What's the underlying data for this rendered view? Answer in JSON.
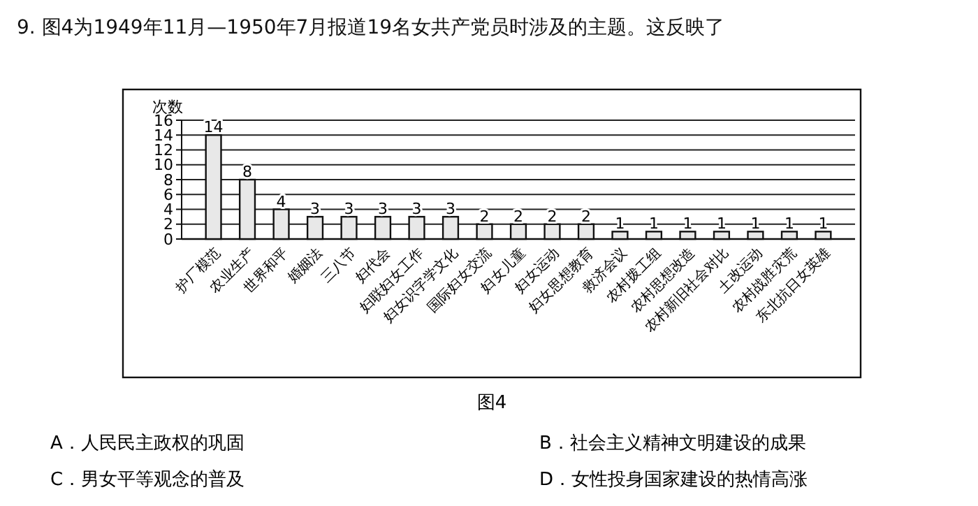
{
  "chart_data": {
    "type": "bar",
    "title": "9. 图4为1949年11月—1950年7月报道19名女共产党员时涉及的主题。这反映了",
    "ylabel": "次数",
    "categories": [
      "护厂模范",
      "农业生产",
      "世界和平",
      "婚姻法",
      "三八节",
      "妇代会",
      "妇联妇女工作",
      "妇女识字学文化",
      "国际妇女交流",
      "妇女儿童",
      "妇女运动",
      "妇女思想教育",
      "救济会议",
      "农村拨工组",
      "农村思想改造",
      "农村新旧社会对比",
      "土改运动",
      "农村战胜灾荒",
      "东北抗日女英雄"
    ],
    "values": [
      14,
      8,
      4,
      3,
      3,
      3,
      3,
      3,
      2,
      2,
      2,
      2,
      1,
      1,
      1,
      1,
      1,
      1,
      1
    ],
    "color": "#e8e8e8",
    "ylim": [
      0,
      16
    ],
    "yticks": [
      0,
      2,
      4,
      6,
      8,
      10,
      12,
      14,
      16
    ],
    "grid": "y",
    "data_labels": true,
    "annotations": [
      "图4",
      "A．人民民主政权的巩固",
      "B．社会主义精神文明建设的成果",
      "C．男女平等观念的普及",
      "D．女性投身国家建设的热情高涨"
    ]
  }
}
